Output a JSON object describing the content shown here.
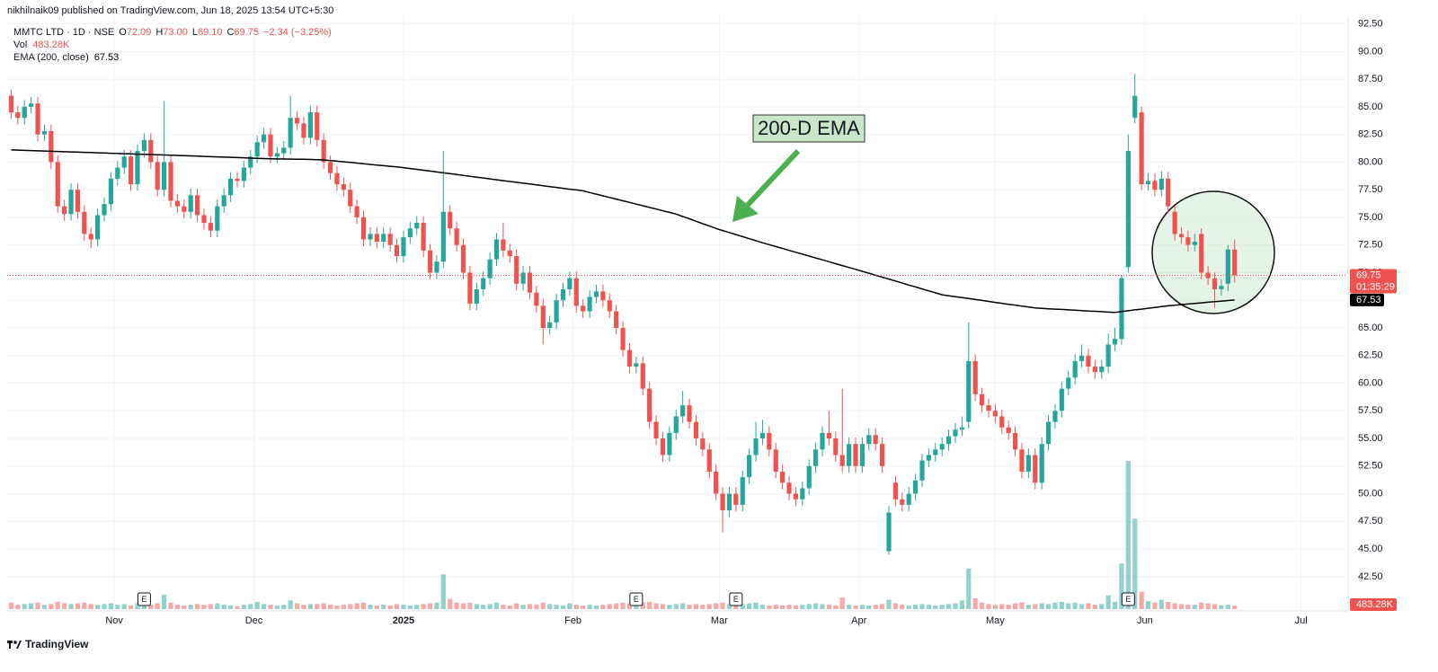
{
  "header": {
    "publisher": "nikhilnaik09 published on TradingView.com, Jun 18, 2025 13:54 UTC+5:30"
  },
  "footer": {
    "brand": "TradingView"
  },
  "chart_data": {
    "type": "candlestick",
    "legend": {
      "symbol": "MMTC LTD · 1D · NSE",
      "ohlc": [
        {
          "key": "O",
          "value": "72.09"
        },
        {
          "key": "H",
          "value": "73.00"
        },
        {
          "key": "L",
          "value": "69.10"
        },
        {
          "key": "C",
          "value": "69.75"
        }
      ],
      "change": "−2.34 (−3.25%)",
      "vol": "Vol",
      "vol_value": "483.28K",
      "ema": "EMA (200, close)"
    },
    "annotation": "200-D EMA",
    "countdown": "01:35:29",
    "colors": {
      "up": "#26a69a",
      "down": "#ef5350",
      "ema": "#000000"
    },
    "grid": true,
    "ylim": [
      39.4,
      93.2
    ],
    "yticks": [
      {
        "value": 92.5,
        "label": "92.50"
      },
      {
        "value": 90,
        "label": "90.00"
      },
      {
        "value": 87.5,
        "label": "87.50"
      },
      {
        "value": 85,
        "label": "85.00"
      },
      {
        "value": 82.5,
        "label": "82.50"
      },
      {
        "value": 80,
        "label": "80.00"
      },
      {
        "value": 77.5,
        "label": "77.50"
      },
      {
        "value": 75,
        "label": "75.00"
      },
      {
        "value": 72.5,
        "label": "72.50"
      },
      {
        "value": 70,
        "label": "70.00"
      },
      {
        "value": 67.5,
        "label": "67.50"
      },
      {
        "value": 65,
        "label": "65.00"
      },
      {
        "value": 62.5,
        "label": "62.50"
      },
      {
        "value": 60,
        "label": "60.00"
      },
      {
        "value": 57.5,
        "label": "57.50"
      },
      {
        "value": 55,
        "label": "55.00"
      },
      {
        "value": 52.5,
        "label": "52.50"
      },
      {
        "value": 50,
        "label": "50.00"
      },
      {
        "value": 47.5,
        "label": "47.50"
      },
      {
        "value": 45,
        "label": "45.00"
      },
      {
        "value": 42.5,
        "label": "42.50"
      }
    ],
    "xlim": [
      -0.6,
      200.8
    ],
    "xticks": [
      {
        "value": 15.5,
        "label": "Nov"
      },
      {
        "value": 36.5,
        "label": "Dec"
      },
      {
        "value": 59,
        "label": "2025"
      },
      {
        "value": 84.5,
        "label": "Feb"
      },
      {
        "value": 106.5,
        "label": "Mar"
      },
      {
        "value": 127.5,
        "label": "Apr"
      },
      {
        "value": 148,
        "label": "May"
      },
      {
        "value": 170.5,
        "label": "Jun"
      },
      {
        "value": 194,
        "label": "Jul"
      }
    ],
    "earnings": {
      "label": "E",
      "at": [
        20,
        94,
        109,
        168
      ]
    },
    "open": [
      86,
      84.5,
      84,
      85,
      85.3,
      82.5,
      82.8,
      80,
      76,
      75.3,
      77.5,
      75.5,
      73.5,
      73,
      75.2,
      76.2,
      78.5,
      79.5,
      80.5,
      78,
      81,
      82,
      80,
      77.5,
      80,
      76.5,
      76,
      75.5,
      77,
      75.2,
      74.5,
      73.8,
      76,
      77,
      78.5,
      78.3,
      79.5,
      80.5,
      81.8,
      82.5,
      80.5,
      80.8,
      81.3,
      84,
      83.5,
      82.2,
      84.5,
      82,
      80,
      79,
      78,
      77.5,
      76,
      75,
      73,
      73.5,
      72.8,
      73.5,
      72.5,
      71.5,
      73.2,
      74,
      74.5,
      72,
      70,
      71,
      75.5,
      74,
      72.5,
      70,
      67.2,
      68.5,
      69.5,
      71.2,
      73,
      72,
      71.5,
      69,
      70,
      68.2,
      67,
      65,
      65.5,
      67.5,
      68.5,
      69.5,
      67,
      66.5,
      67.8,
      68.3,
      67.5,
      66.5,
      65,
      63,
      61.5,
      61.8,
      59.5,
      56.5,
      55,
      53.5,
      55.5,
      57,
      58,
      56.5,
      55,
      54,
      52,
      50,
      48.5,
      50,
      49,
      51.5,
      53.5,
      55,
      55.5,
      54,
      52,
      51,
      50,
      49.5,
      50.5,
      52.5,
      54,
      55.5,
      55,
      53.5,
      52.5,
      54.5,
      52.5,
      54.5,
      55.3,
      54.5,
      44.8,
      51,
      49.5,
      49,
      50,
      51.2,
      53,
      53.5,
      54,
      54.5,
      55.2,
      55.8,
      56.5,
      62,
      59,
      58,
      57.5,
      57,
      56,
      55.5,
      54,
      52,
      53.5,
      51,
      54.5,
      56.5,
      57.5,
      59.5,
      60.5,
      62,
      62.5,
      61.5,
      61,
      61.5,
      63.5,
      64,
      70.5,
      84,
      84.5,
      78,
      78.3,
      77.5,
      78.5,
      75.5,
      73.5,
      73.2,
      72.5,
      73.5,
      70,
      69.5,
      68.5,
      69,
      72.09
    ],
    "high": [
      86.6,
      85.1,
      85.6,
      85.9,
      85.9,
      83.4,
      83.4,
      80.6,
      76.6,
      78.1,
      78.1,
      76.1,
      74.1,
      75.8,
      76.8,
      79.1,
      80.1,
      81.1,
      81.1,
      81.6,
      82.6,
      82.6,
      80.6,
      85.5,
      80.6,
      77.1,
      76.6,
      77.6,
      77.6,
      75.8,
      75.1,
      76.6,
      77.6,
      79.1,
      79.1,
      80.1,
      81.1,
      82.4,
      83.1,
      83.1,
      81.4,
      81.9,
      86,
      84.6,
      84.1,
      85.1,
      85.1,
      82.6,
      80.6,
      79.6,
      78.6,
      78.1,
      76.6,
      75.6,
      74.1,
      74.1,
      74.1,
      74.1,
      73.1,
      73.8,
      74.6,
      75.1,
      75.1,
      72.6,
      71.6,
      81,
      76.1,
      74.6,
      73.1,
      70.6,
      69.1,
      70.1,
      71.8,
      73.6,
      74.5,
      72.6,
      72.1,
      70.6,
      70.6,
      68.8,
      67.6,
      66.1,
      68.1,
      69.1,
      70.1,
      70.1,
      67.6,
      68.4,
      68.9,
      68.9,
      68.1,
      67.1,
      65.6,
      63.6,
      62.4,
      62.4,
      60.1,
      57.1,
      55.6,
      56.1,
      57.6,
      59.3,
      58.6,
      57.1,
      55.6,
      54.6,
      52.6,
      50.6,
      50.6,
      50.6,
      52.1,
      54.1,
      56.5,
      56.7,
      56.1,
      54.6,
      52.6,
      51.6,
      50.6,
      51.1,
      53.1,
      54.6,
      56.1,
      57.5,
      55.6,
      59.5,
      55.1,
      55.1,
      55.1,
      55.9,
      55.9,
      55.1,
      48.9,
      51.6,
      50.1,
      50.6,
      51.8,
      53.6,
      54.1,
      54.6,
      55.1,
      55.8,
      56.4,
      57,
      65.5,
      62.6,
      59.6,
      58.6,
      58.1,
      57.6,
      56.6,
      56.1,
      54.6,
      54.1,
      54.1,
      55.1,
      57.1,
      58.1,
      60.1,
      61.1,
      62.6,
      63.5,
      63.1,
      62.1,
      62.1,
      64.5,
      65,
      69.8,
      82.5,
      88,
      85,
      79,
      79,
      79.2,
      79.1,
      76,
      74.1,
      73.8,
      73.5,
      74,
      70.6,
      70,
      69.4,
      72.5,
      73
    ],
    "low": [
      83.9,
      83.4,
      83.4,
      84.4,
      81.9,
      81.9,
      79.4,
      75.4,
      74.7,
      74.7,
      74.9,
      72.9,
      72.2,
      72.4,
      74.6,
      75.6,
      77.9,
      78.9,
      77.4,
      77.4,
      80.4,
      79.4,
      76.9,
      76.9,
      75.9,
      75.4,
      74.9,
      74.9,
      74.6,
      73.9,
      73.2,
      73.2,
      75.4,
      76.4,
      77.7,
      77.7,
      78.9,
      79.9,
      81.2,
      79.9,
      79.9,
      80.2,
      80.7,
      82.9,
      81.6,
      81.6,
      81.4,
      79.4,
      78.4,
      77.4,
      76.9,
      75.4,
      74.4,
      72.4,
      72.4,
      72.2,
      72.2,
      71.9,
      70.9,
      70.9,
      72.6,
      73.4,
      71.4,
      69.4,
      69.4,
      70.4,
      73.4,
      71.9,
      69.4,
      66.6,
      66.6,
      67.9,
      68.9,
      70.6,
      71.4,
      70.9,
      68.4,
      68.4,
      67.6,
      66.4,
      63.5,
      64.4,
      64.9,
      66.9,
      67.9,
      66.4,
      65.9,
      65.9,
      67.2,
      66.9,
      65.9,
      64.4,
      62.4,
      60.9,
      60.9,
      58.9,
      55.9,
      54.4,
      52.9,
      52.9,
      54.9,
      56.4,
      55.9,
      54.4,
      53.4,
      51.4,
      49.4,
      46.5,
      47.9,
      48.4,
      48.4,
      50.9,
      52.9,
      54.4,
      53.4,
      51.4,
      50.4,
      49.4,
      48.9,
      48.9,
      49.9,
      51.9,
      53.4,
      54.4,
      52.9,
      51.9,
      51.9,
      51.9,
      51.9,
      53.9,
      53.9,
      51.9,
      44.5,
      48.9,
      48.4,
      48.4,
      49.4,
      50.6,
      52.4,
      52.9,
      53.4,
      53.9,
      54.6,
      55.2,
      55.9,
      58.4,
      57.4,
      56.9,
      56.4,
      55.4,
      54.9,
      53.4,
      51.4,
      51.4,
      50.4,
      50.4,
      53.9,
      55.9,
      56.9,
      58.9,
      59.9,
      61.4,
      60.9,
      60.4,
      60.4,
      60.9,
      62.9,
      63.5,
      70,
      83.5,
      77.5,
      77.4,
      76.9,
      76.9,
      75.4,
      72.9,
      72.6,
      71.9,
      71.9,
      69.4,
      68.9,
      66.8,
      67.9,
      68.3,
      69.1
    ],
    "close": [
      84.5,
      84,
      85,
      85.3,
      82.5,
      82.8,
      80,
      76,
      75.3,
      77.5,
      75.5,
      73.5,
      73,
      75.2,
      76.2,
      78.5,
      79.5,
      80.5,
      78,
      81,
      82,
      80,
      77.5,
      80,
      76.5,
      76,
      75.5,
      77,
      75.2,
      74.5,
      73.8,
      76,
      77,
      78.5,
      78.3,
      79.5,
      80.5,
      81.8,
      82.5,
      80.5,
      80.8,
      81.3,
      84,
      83.5,
      82.2,
      84.5,
      82,
      80,
      79,
      78,
      77.5,
      76,
      75,
      73,
      73.5,
      72.8,
      73.5,
      72.5,
      71.5,
      73.2,
      74,
      74.5,
      72,
      70,
      71,
      75.5,
      74,
      72.5,
      70,
      67.2,
      68.5,
      69.5,
      71.2,
      73,
      72,
      71.5,
      69,
      70,
      68.2,
      67,
      65,
      65.5,
      67.5,
      68.5,
      69.5,
      67,
      66.5,
      67.8,
      68.3,
      67.5,
      66.5,
      65,
      63,
      61.5,
      61.8,
      59.5,
      56.5,
      55,
      53.5,
      55.5,
      57,
      58,
      56.5,
      55,
      54,
      52,
      50,
      48.5,
      50,
      49,
      51.5,
      53.5,
      55,
      55.5,
      54,
      52,
      51,
      50,
      49.5,
      50.5,
      52.5,
      54,
      55.5,
      55,
      53.5,
      52.5,
      54.5,
      52.5,
      54.5,
      55.3,
      54.5,
      52.5,
      48.3,
      49.5,
      49,
      50,
      51.2,
      53,
      53.5,
      54,
      54.5,
      55.2,
      55.8,
      56,
      62,
      59,
      58,
      57.5,
      57,
      56,
      55.5,
      54,
      52,
      53.5,
      51,
      54.5,
      56.5,
      57.5,
      59.5,
      60.5,
      62,
      62.5,
      61.5,
      61,
      61.5,
      63.5,
      64,
      69.5,
      81,
      86,
      78,
      78.3,
      77.5,
      78.5,
      76,
      73.5,
      73.2,
      72.5,
      72.8,
      70,
      69.5,
      68.5,
      68.8,
      72.09,
      69.75
    ],
    "volume": [
      900000,
      600000,
      700000,
      800000,
      900000,
      600000,
      700000,
      1000000,
      800000,
      700000,
      800000,
      900000,
      700000,
      600000,
      700000,
      800000,
      600000,
      700000,
      500000,
      800000,
      900000,
      600000,
      800000,
      2000000,
      900000,
      600000,
      500000,
      600000,
      700000,
      600000,
      700000,
      800000,
      600000,
      500000,
      400000,
      600000,
      700000,
      1000000,
      700000,
      600000,
      500000,
      600000,
      1200000,
      800000,
      600000,
      700000,
      700000,
      800000,
      600000,
      500000,
      600000,
      700000,
      800000,
      900000,
      600000,
      500000,
      600000,
      500000,
      700000,
      600000,
      500000,
      600000,
      700000,
      800000,
      900000,
      4800000,
      1400000,
      900000,
      800000,
      900000,
      700000,
      600000,
      700000,
      900000,
      600000,
      500000,
      800000,
      600000,
      700000,
      600000,
      900000,
      700000,
      600000,
      500000,
      800000,
      600000,
      500000,
      600000,
      500000,
      600000,
      700000,
      800000,
      900000,
      800000,
      600000,
      900000,
      1000000,
      800000,
      700000,
      600000,
      700000,
      800000,
      600000,
      700000,
      600000,
      700000,
      800000,
      900000,
      700000,
      600000,
      700000,
      800000,
      900000,
      600000,
      500000,
      600000,
      500000,
      600000,
      500000,
      600000,
      700000,
      800000,
      700000,
      600000,
      500000,
      1600000,
      600000,
      500000,
      600000,
      500000,
      600000,
      700000,
      1300000,
      800000,
      600000,
      500000,
      600000,
      700000,
      600000,
      500000,
      600000,
      700000,
      800000,
      1200000,
      5600000,
      1500000,
      900000,
      700000,
      600000,
      700000,
      600000,
      800000,
      900000,
      600000,
      700000,
      800000,
      700000,
      900000,
      1000000,
      800000,
      900000,
      700000,
      800000,
      600000,
      700000,
      1900000,
      1000000,
      6300000,
      20500000,
      12500000,
      2400000,
      1100000,
      900000,
      1300000,
      1000000,
      800000,
      700000,
      600000,
      600000,
      900000,
      800000,
      700000,
      500000,
      600000,
      483280
    ],
    "ema": [
      81.1,
      81.08,
      81.06,
      81.04,
      81.02,
      81.0,
      80.98,
      80.96,
      80.94,
      80.92,
      80.9,
      80.88,
      80.86,
      80.84,
      80.82,
      80.8,
      80.78,
      80.76,
      80.74,
      80.72,
      80.7,
      80.68,
      80.66,
      80.64,
      80.62,
      80.6,
      80.58,
      80.56,
      80.54,
      80.51,
      80.49,
      80.47,
      80.45,
      80.43,
      80.41,
      80.39,
      80.36,
      80.34,
      80.32,
      80.3,
      80.29,
      80.28,
      80.27,
      80.26,
      80.25,
      80.24,
      80.22,
      80.2,
      80.14,
      80.08,
      80.03,
      79.97,
      79.91,
      79.85,
      79.79,
      79.73,
      79.68,
      79.62,
      79.56,
      79.5,
      79.42,
      79.34,
      79.26,
      79.19,
      79.11,
      79.03,
      78.95,
      78.87,
      78.79,
      78.71,
      78.64,
      78.56,
      78.48,
      78.4,
      78.32,
      78.25,
      78.17,
      78.09,
      78.02,
      77.94,
      77.86,
      77.78,
      77.71,
      77.63,
      77.55,
      77.48,
      77.4,
      77.25,
      77.1,
      76.95,
      76.8,
      76.65,
      76.5,
      76.35,
      76.2,
      76.05,
      75.9,
      75.75,
      75.6,
      75.45,
      75.3,
      75.08,
      74.87,
      74.65,
      74.43,
      74.22,
      74.0,
      73.81,
      73.63,
      73.44,
      73.26,
      73.07,
      72.89,
      72.7,
      72.53,
      72.36,
      72.19,
      72.01,
      71.84,
      71.67,
      71.5,
      71.33,
      71.16,
      70.99,
      70.81,
      70.64,
      70.47,
      70.3,
      70.12,
      69.95,
      69.77,
      69.59,
      69.42,
      69.24,
      69.06,
      68.88,
      68.71,
      68.53,
      68.35,
      68.18,
      68.0,
      67.91,
      67.83,
      67.74,
      67.66,
      67.57,
      67.49,
      67.4,
      67.31,
      67.23,
      67.14,
      67.06,
      66.97,
      66.89,
      66.8,
      66.77,
      66.73,
      66.7,
      66.67,
      66.63,
      66.6,
      66.57,
      66.53,
      66.5,
      66.47,
      66.43,
      66.4,
      66.48,
      66.55,
      66.63,
      66.7,
      66.78,
      66.85,
      66.93,
      67.0,
      67.05,
      67.11,
      67.16,
      67.21,
      67.27,
      67.32,
      67.37,
      67.42,
      67.48,
      67.53
    ]
  }
}
